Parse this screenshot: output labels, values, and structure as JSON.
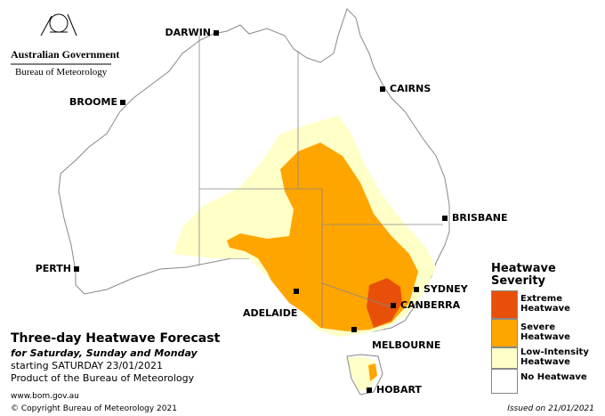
{
  "header": {
    "government": "Australian Government",
    "agency": "Bureau of Meteorology"
  },
  "cities": [
    "DARWIN",
    "CAIRNS",
    "BROOME",
    "BRISBANE",
    "PERTH",
    "SYDNEY",
    "ADELAIDE",
    "CANBERRA",
    "MELBOURNE",
    "HOBART"
  ],
  "title": "Three-day Heatwave Forecast",
  "subtitle": "for Saturday, Sunday and Monday",
  "starting": "starting SATURDAY 23/01/2021",
  "product": "Product of the Bureau of Meteorology",
  "website": "www.bom.gov.au",
  "copyright": "© Copyright Bureau of Meteorology 2021",
  "issued": "Issued on 21/01/2021",
  "legend": {
    "title": "Heatwave Severity",
    "items": [
      {
        "label": "Extreme Heatwave",
        "color": "#e8500a"
      },
      {
        "label": "Severe Heatwave",
        "color": "#ffa500"
      },
      {
        "label": "Low-Intensity Heatwave",
        "color": "#ffffc8"
      },
      {
        "label": "No Heatwave",
        "color": "#ffffff"
      }
    ]
  }
}
